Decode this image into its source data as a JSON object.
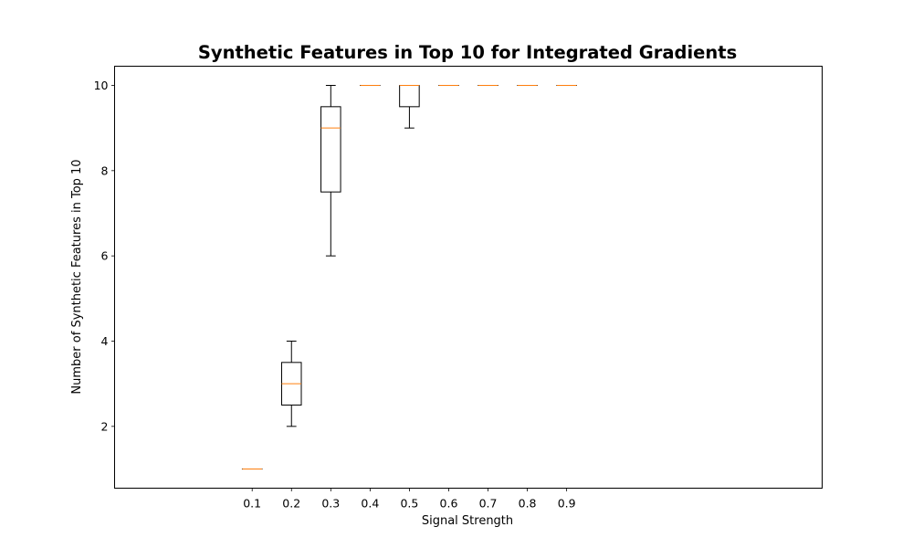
{
  "chart_data": {
    "type": "boxplot",
    "title": "Synthetic Features in Top 10 for Integrated Gradients",
    "xlabel": "Signal Strength",
    "ylabel": "Number of Synthetic Features in Top 10",
    "categories": [
      "0.1",
      "0.2",
      "0.3",
      "0.4",
      "0.5",
      "0.6",
      "0.7",
      "0.8",
      "0.9"
    ],
    "yticks": [
      "2",
      "4",
      "6",
      "8",
      "10"
    ],
    "ylim": [
      0.55,
      10.45
    ],
    "grid": false,
    "boxes": [
      {
        "category": "0.1",
        "whisker_low": 1,
        "q1": 1,
        "median": 1,
        "q3": 1,
        "whisker_high": 1
      },
      {
        "category": "0.2",
        "whisker_low": 2,
        "q1": 2.5,
        "median": 3,
        "q3": 3.5,
        "whisker_high": 4
      },
      {
        "category": "0.3",
        "whisker_low": 6,
        "q1": 7.5,
        "median": 9,
        "q3": 9.5,
        "whisker_high": 10
      },
      {
        "category": "0.4",
        "whisker_low": 10,
        "q1": 10,
        "median": 10,
        "q3": 10,
        "whisker_high": 10
      },
      {
        "category": "0.5",
        "whisker_low": 9,
        "q1": 9.5,
        "median": 10,
        "q3": 10,
        "whisker_high": 10
      },
      {
        "category": "0.6",
        "whisker_low": 10,
        "q1": 10,
        "median": 10,
        "q3": 10,
        "whisker_high": 10
      },
      {
        "category": "0.7",
        "whisker_low": 10,
        "q1": 10,
        "median": 10,
        "q3": 10,
        "whisker_high": 10
      },
      {
        "category": "0.8",
        "whisker_low": 10,
        "q1": 10,
        "median": 10,
        "q3": 10,
        "whisker_high": 10
      },
      {
        "category": "0.9",
        "whisker_low": 10,
        "q1": 10,
        "median": 10,
        "q3": 10,
        "whisker_high": 10
      }
    ],
    "colors": {
      "box": "#000000",
      "median": "#ff7f0e"
    }
  }
}
